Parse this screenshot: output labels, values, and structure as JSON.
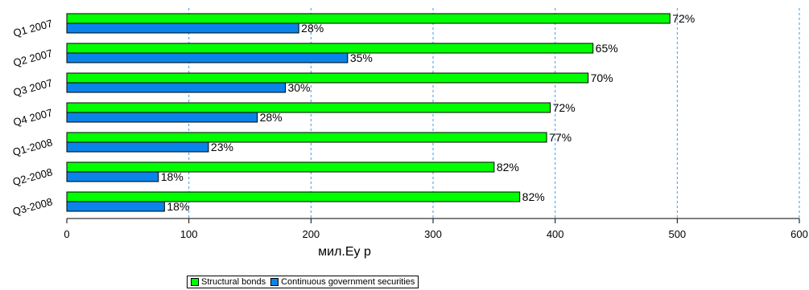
{
  "chart_data": {
    "type": "bar",
    "orientation": "horizontal",
    "title": "",
    "xlabel": "мил.Еу р",
    "ylabel": "",
    "xlim": [
      0,
      600
    ],
    "xticks": [
      0,
      100,
      200,
      300,
      400,
      500,
      600
    ],
    "grid": "vertical dashed",
    "legend_position": "bottom",
    "categories": [
      "Q1 2007",
      "Q2 2007",
      "Q3 2007",
      "Q4 2007",
      "Q1-2008",
      "Q2-2008",
      "Q3-2008"
    ],
    "series": [
      {
        "name": "Structural bonds",
        "color": "#00ff00",
        "values": [
          494,
          431,
          427,
          396,
          393,
          350,
          371
        ],
        "labels": [
          "72%",
          "65%",
          "70%",
          "72%",
          "77%",
          "82%",
          "82%"
        ]
      },
      {
        "name": "Continuous government securities",
        "color": "#0a84e8",
        "values": [
          190,
          230,
          179,
          156,
          116,
          75,
          80
        ],
        "labels": [
          "28%",
          "35%",
          "30%",
          "28%",
          "23%",
          "18%",
          "18%"
        ]
      }
    ]
  }
}
